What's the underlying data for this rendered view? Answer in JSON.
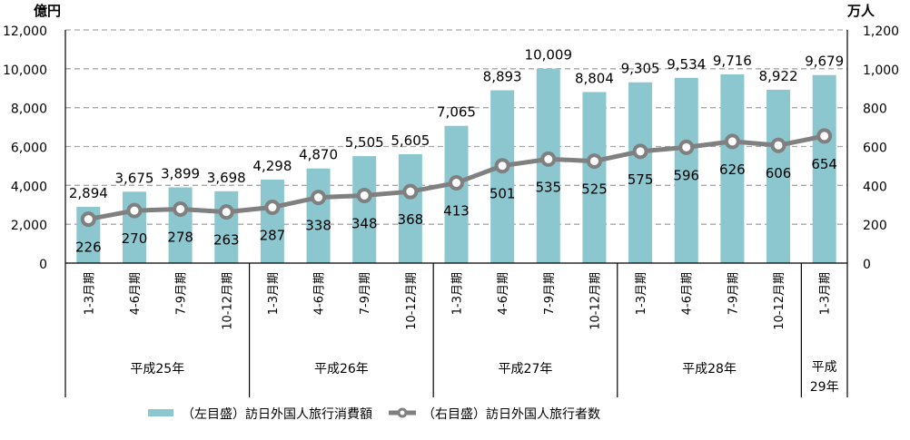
{
  "chart_data": {
    "type": "bar+line",
    "left_axis": {
      "unit": "億円",
      "ylim": [
        0,
        12000
      ],
      "ticks": [
        "0",
        "2,000",
        "4,000",
        "6,000",
        "8,000",
        "10,000",
        "12,000"
      ]
    },
    "right_axis": {
      "unit": "万人",
      "ylim": [
        0,
        1200
      ],
      "ticks": [
        "0",
        "200",
        "400",
        "600",
        "800",
        "1,000",
        "1,200"
      ]
    },
    "categories": [
      "1-3月期",
      "4-6月期",
      "7-9月期",
      "10-12月期",
      "1-3月期",
      "4-6月期",
      "7-9月期",
      "10-12月期",
      "1-3月期",
      "4-6月期",
      "7-9月期",
      "10-12月期",
      "1-3月期",
      "4-6月期",
      "7-9月期",
      "10-12月期",
      "1-3月期"
    ],
    "groups": [
      {
        "label": "平成25年",
        "count": 4
      },
      {
        "label": "平成26年",
        "count": 4
      },
      {
        "label": "平成27年",
        "count": 4
      },
      {
        "label": "平成28年",
        "count": 4
      },
      {
        "label": "平成\n29年",
        "count": 1
      }
    ],
    "series": [
      {
        "name": "（左目盛）訪日外国人旅行消費額",
        "type": "bar",
        "axis": "left",
        "color": "#8cc6cf",
        "values": [
          2894,
          3675,
          3899,
          3698,
          4298,
          4870,
          5505,
          5605,
          7065,
          8893,
          10009,
          8804,
          9305,
          9534,
          9716,
          8922,
          9679
        ],
        "labels": [
          "2,894",
          "3,675",
          "3,899",
          "3,698",
          "4,298",
          "4,870",
          "5,505",
          "5,605",
          "7,065",
          "8,893",
          "10,009",
          "8,804",
          "9,305",
          "9,534",
          "9,716",
          "8,922",
          "9,679"
        ]
      },
      {
        "name": "（右目盛）訪日外国人旅行者数",
        "type": "line",
        "axis": "right",
        "color": "#808080",
        "values": [
          226,
          270,
          278,
          263,
          287,
          338,
          348,
          368,
          413,
          501,
          535,
          525,
          575,
          596,
          626,
          606,
          654
        ],
        "labels": [
          "226",
          "270",
          "278",
          "263",
          "287",
          "338",
          "348",
          "368",
          "413",
          "501",
          "535",
          "525",
          "575",
          "596",
          "626",
          "606",
          "654"
        ]
      }
    ],
    "grid": true,
    "legend_position": "bottom"
  }
}
